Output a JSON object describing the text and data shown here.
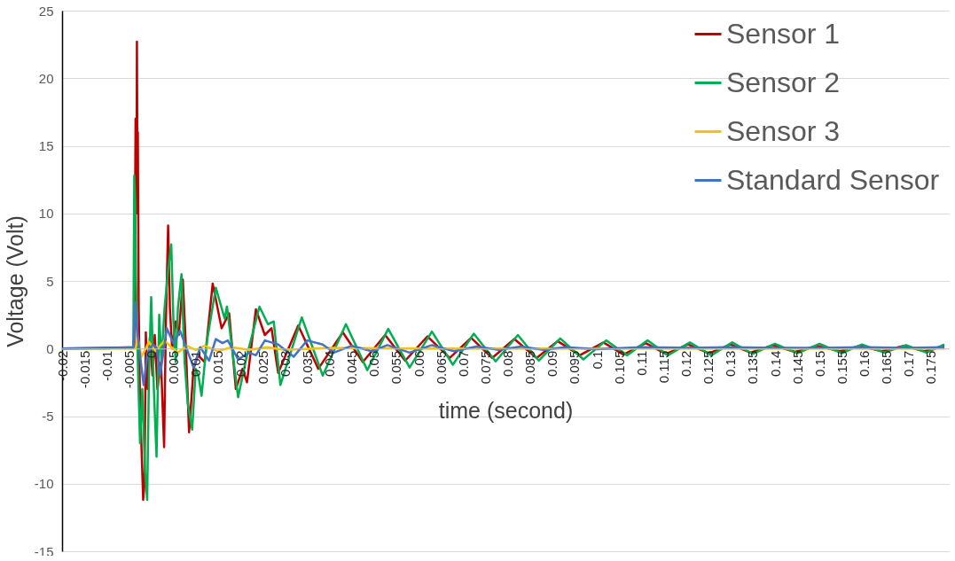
{
  "chart_data": {
    "type": "line",
    "xlabel": "time (second)",
    "ylabel": "Voltage (Volt)",
    "xlim": [
      -0.02,
      0.179
    ],
    "xticks": [
      -0.02,
      -0.015,
      -0.01,
      -0.005,
      0,
      0.005,
      0.01,
      0.015,
      0.02,
      0.025,
      0.03,
      0.035,
      0.04,
      0.045,
      0.05,
      0.055,
      0.06,
      0.065,
      0.07,
      0.075,
      0.08,
      0.085,
      0.09,
      0.095,
      0.1,
      0.105,
      0.11,
      0.115,
      0.12,
      0.125,
      0.13,
      0.135,
      0.14,
      0.145,
      0.15,
      0.155,
      0.16,
      0.165,
      0.17,
      0.175
    ],
    "ylim": [
      -15,
      25
    ],
    "yticks": [
      -15,
      -10,
      -5,
      0,
      5,
      10,
      15,
      20,
      25
    ],
    "grid": "y",
    "legend": "top right",
    "series": [
      {
        "name": "Sensor 1",
        "color": "#c00000",
        "x": [
          -0.02,
          -0.01,
          -0.0038,
          -0.0035,
          -0.0033,
          -0.0032,
          -0.0031,
          -0.003,
          -0.0028,
          -0.0025,
          -0.0018,
          -0.0015,
          -0.0012,
          -0.0008,
          -0.0003,
          0.0003,
          0.0008,
          0.0014,
          0.0022,
          0.0029,
          0.0033,
          0.0038,
          0.0042,
          0.0047,
          0.0055,
          0.0062,
          0.0071,
          0.0078,
          0.0085,
          0.0095,
          0.0105,
          0.012,
          0.0138,
          0.0158,
          0.0175,
          0.019,
          0.0205,
          0.0215,
          0.0235,
          0.0255,
          0.027,
          0.0285,
          0.033,
          0.0375,
          0.043,
          0.0475,
          0.0525,
          0.057,
          0.062,
          0.067,
          0.0718,
          0.0765,
          0.0815,
          0.0865,
          0.0912,
          0.0962,
          0.1015,
          0.106,
          0.111,
          0.1155,
          0.1205,
          0.1252,
          0.13,
          0.1345,
          0.1395,
          0.1445,
          0.1495,
          0.1545,
          0.159,
          0.164,
          0.169,
          0.1735,
          0.178
        ],
        "values": [
          0,
          0.05,
          0.1,
          17,
          10,
          22.7,
          14,
          16,
          3,
          -4,
          -11.2,
          -10,
          1.2,
          -3,
          0.8,
          -2,
          1,
          -3,
          -1,
          -7.3,
          2,
          9.1,
          3,
          0,
          2,
          1,
          5.1,
          0,
          -6.2,
          -1.5,
          -0.5,
          -1,
          4.8,
          1.5,
          2.6,
          -3,
          -1.5,
          -2.5,
          2.9,
          1,
          1.5,
          -1.8,
          1.7,
          -1.5,
          1.2,
          -1,
          1,
          -0.9,
          0.9,
          -0.7,
          0.8,
          -0.7,
          0.7,
          -0.7,
          0.55,
          -0.5,
          0.45,
          -0.45,
          0.4,
          -0.4,
          0.3,
          -0.35,
          0.3,
          -0.3,
          0.25,
          -0.25,
          0.2,
          -0.2,
          0.2,
          -0.2,
          0.2,
          -0.2,
          0.2
        ]
      },
      {
        "name": "Sensor 2",
        "color": "#00b050",
        "x": [
          -0.02,
          -0.01,
          -0.004,
          -0.0038,
          -0.0036,
          -0.0034,
          -0.003,
          -0.0025,
          -0.002,
          -0.0014,
          -0.0009,
          -0.0005,
          0,
          0.0006,
          0.0012,
          0.0018,
          0.0023,
          0.003,
          0.0038,
          0.0045,
          0.005,
          0.0055,
          0.006,
          0.0068,
          0.0075,
          0.0082,
          0.0092,
          0.01,
          0.0106,
          0.0113,
          0.0125,
          0.0145,
          0.0165,
          0.017,
          0.0195,
          0.0215,
          0.0243,
          0.0262,
          0.0275,
          0.029,
          0.0338,
          0.0385,
          0.0437,
          0.0485,
          0.0532,
          0.058,
          0.063,
          0.0677,
          0.0724,
          0.0773,
          0.0823,
          0.087,
          0.0918,
          0.097,
          0.1021,
          0.1068,
          0.1114,
          0.116,
          0.1209,
          0.1257,
          0.1304,
          0.135,
          0.14,
          0.145,
          0.15,
          0.155,
          0.1595,
          0.1645,
          0.1694,
          0.174,
          0.178
        ],
        "values": [
          0,
          0,
          0.1,
          12.8,
          11,
          5,
          -1,
          -7,
          -3,
          -9,
          -11.2,
          -2,
          3.8,
          -3,
          -8,
          2.5,
          -1,
          3,
          5.8,
          7.7,
          2,
          -1,
          3,
          5.5,
          -1,
          -4,
          -6,
          -1.5,
          -2,
          -3.5,
          0.5,
          4.5,
          2.2,
          3.1,
          -3.6,
          -0.5,
          3.1,
          1.8,
          2,
          -2.7,
          2.3,
          -2,
          1.8,
          -1.6,
          1.45,
          -1.4,
          1.25,
          -1.2,
          1.1,
          -0.95,
          1,
          -0.9,
          0.75,
          -0.8,
          0.6,
          -0.5,
          0.6,
          -0.5,
          0.45,
          -0.5,
          0.45,
          -0.4,
          0.35,
          -0.35,
          0.35,
          -0.35,
          0.3,
          -0.3,
          0.25,
          -0.3,
          0.3
        ]
      },
      {
        "name": "Sensor 3",
        "color": "#ffc000",
        "x": [
          -0.02,
          -0.0035,
          -0.003,
          -0.0022,
          -0.0012,
          -0.0005,
          0.001,
          0.003,
          0.0045,
          0.006,
          0.008,
          0.01,
          0.012,
          0.015,
          0.018,
          0.022,
          0.026,
          0.03,
          0.04,
          0.06,
          0.1,
          0.178
        ],
        "values": [
          0,
          0,
          0.8,
          -0.6,
          0,
          0.5,
          -0.2,
          0.6,
          0.1,
          -0.3,
          0.2,
          -0.1,
          0.2,
          -0.2,
          0.1,
          -0.1,
          0.1,
          -0.1,
          0.05,
          0,
          0,
          0
        ]
      },
      {
        "name": "Standard Sensor",
        "color": "#4472c4",
        "x": [
          -0.02,
          -0.004,
          -0.0036,
          -0.0032,
          -0.0025,
          -0.0017,
          -0.0008,
          0.0004,
          0.0013,
          0.002,
          0.0035,
          0.005,
          0.0065,
          0.0085,
          0.0095,
          0.011,
          0.013,
          0.0145,
          0.016,
          0.0172,
          0.0195,
          0.022,
          0.0235,
          0.0255,
          0.0285,
          0.032,
          0.035,
          0.0385,
          0.041,
          0.045,
          0.0495,
          0.053,
          0.058,
          0.063,
          0.068,
          0.073,
          0.078,
          0.083,
          0.088,
          0.093,
          0.1,
          0.11,
          0.12,
          0.13,
          0.14,
          0.15,
          0.16,
          0.17,
          0.178
        ],
        "values": [
          0,
          0.05,
          3.4,
          1.5,
          -0.5,
          -2.7,
          -0.3,
          0.3,
          0,
          -2,
          1.5,
          0.4,
          1.3,
          -0.5,
          -1.4,
          0.1,
          -0.9,
          0.7,
          0.4,
          0.6,
          -0.8,
          -0.3,
          -0.5,
          0.6,
          0.3,
          -0.6,
          0.6,
          0.3,
          -0.3,
          0.2,
          -0.2,
          0.25,
          -0.3,
          0.25,
          -0.2,
          0.15,
          -0.1,
          0.15,
          -0.1,
          0.1,
          -0.05,
          0.1,
          0.05,
          0.1,
          0.05,
          0.05,
          0.1,
          0.05,
          0.1
        ]
      }
    ]
  }
}
